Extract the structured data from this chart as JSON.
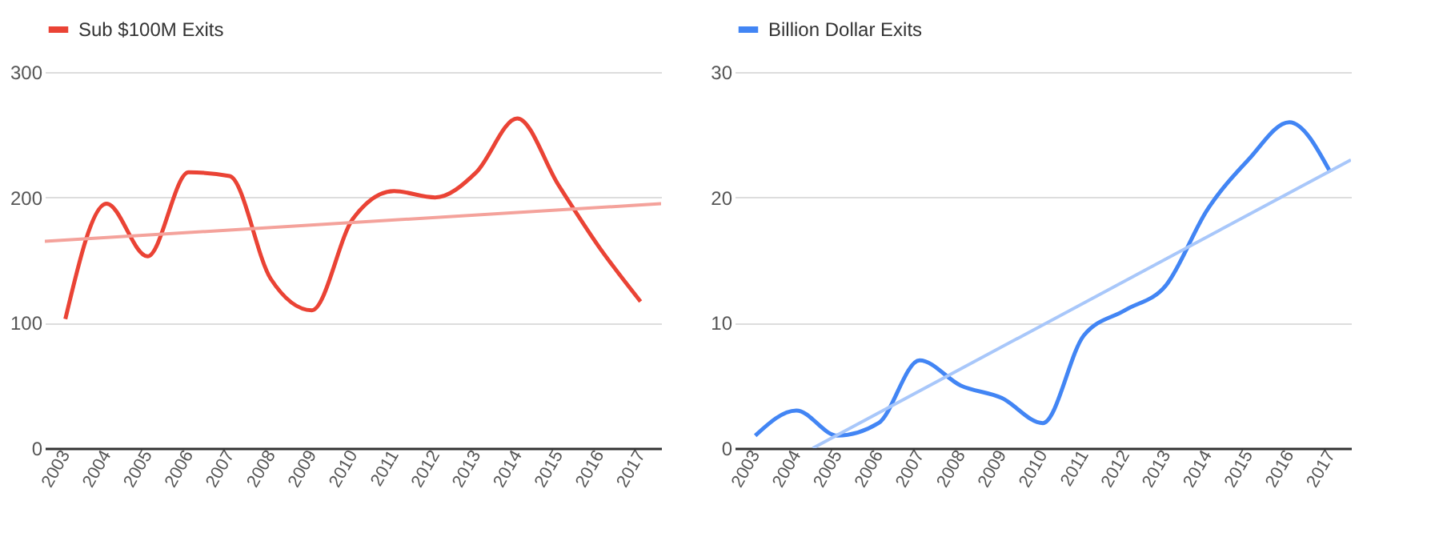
{
  "chart_data": [
    {
      "type": "line",
      "x": [
        2003,
        2004,
        2005,
        2006,
        2007,
        2008,
        2009,
        2010,
        2011,
        2012,
        2013,
        2014,
        2015,
        2016,
        2017
      ],
      "xlim": [
        2002.5,
        2017.5
      ],
      "xticks": [
        2003,
        2004,
        2005,
        2006,
        2007,
        2008,
        2009,
        2010,
        2011,
        2012,
        2013,
        2014,
        2015,
        2016,
        2017
      ],
      "ylim": [
        0,
        300
      ],
      "yticks": [
        0,
        100,
        200,
        300
      ],
      "grid": "y",
      "legend": "top",
      "series": [
        {
          "name": "Sub $100M Exits",
          "color": "#ea4335",
          "values": [
            103,
            195,
            153,
            220,
            217,
            135,
            110,
            183,
            205,
            200,
            220,
            263,
            210,
            160,
            117
          ]
        },
        {
          "type": "line",
          "color": "#f4a29b",
          "x": [
            2002.5,
            2017.5
          ],
          "values": [
            165,
            195
          ]
        }
      ]
    },
    {
      "type": "line",
      "x": [
        2003,
        2004,
        2005,
        2006,
        2007,
        2008,
        2009,
        2010,
        2011,
        2012,
        2013,
        2014,
        2015,
        2016,
        2017
      ],
      "xlim": [
        2002.5,
        2017.5
      ],
      "xticks": [
        2003,
        2004,
        2005,
        2006,
        2007,
        2008,
        2009,
        2010,
        2011,
        2012,
        2013,
        2014,
        2015,
        2016,
        2017
      ],
      "ylim": [
        0,
        30
      ],
      "yticks": [
        0,
        10,
        20,
        30
      ],
      "grid": "y",
      "legend": "top",
      "series": [
        {
          "name": "Billion Dollar Exits",
          "color": "#4285f4",
          "values": [
            1,
            3,
            1,
            2,
            7,
            5,
            4,
            2,
            9,
            11,
            13,
            19,
            23,
            26,
            22
          ]
        },
        {
          "type": "line",
          "color": "#a8c7fa",
          "x": [
            2004.4,
            2017.5
          ],
          "values": [
            0,
            23
          ]
        }
      ]
    }
  ]
}
